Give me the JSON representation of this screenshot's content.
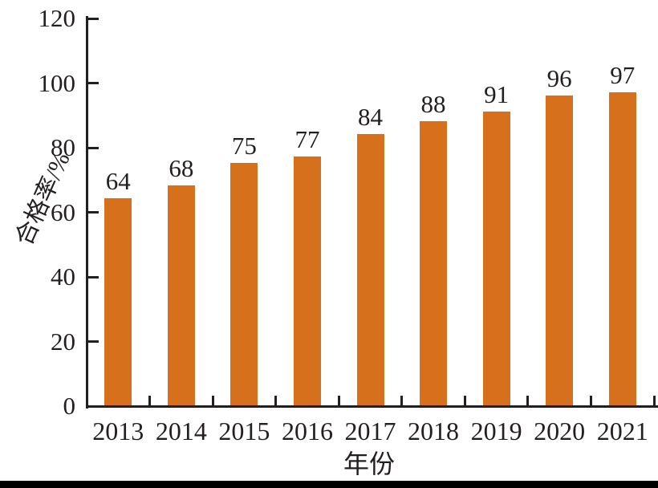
{
  "chart_data": {
    "type": "bar",
    "title": "",
    "categories": [
      "2013",
      "2014",
      "2015",
      "2016",
      "2017",
      "2018",
      "2019",
      "2020",
      "2021"
    ],
    "values": [
      64,
      68,
      75,
      77,
      84,
      88,
      91,
      96,
      97
    ],
    "show_value_labels": true,
    "xlabel": "年份",
    "ylabel": "合格率/%",
    "ylim": [
      0,
      120
    ],
    "yticks": [
      0,
      20,
      40,
      60,
      80,
      100,
      120
    ],
    "grid": false,
    "legend": "none",
    "colors": {
      "bar": "#d7701c",
      "axis": "#231f20",
      "text": "#231f20",
      "bottom_bar": "#000000"
    }
  }
}
